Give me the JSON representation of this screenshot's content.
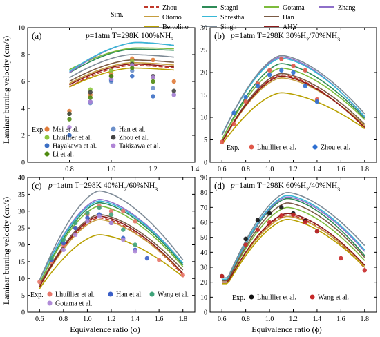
{
  "legend": {
    "sim_label": "Sim.",
    "models": [
      {
        "name": "Zhou",
        "color": "#c0392b",
        "dash": true
      },
      {
        "name": "Stagni",
        "color": "#2e8b57"
      },
      {
        "name": "Gotama",
        "color": "#7dbb3c"
      },
      {
        "name": "Zhang",
        "color": "#8e6fc9"
      },
      {
        "name": "Otomo",
        "color": "#c59d3f"
      },
      {
        "name": "Shrestha",
        "color": "#38b8d6"
      },
      {
        "name": "Han",
        "color": "#7a5a44"
      },
      {
        "name": "Bertolino",
        "color": "#b8a000"
      },
      {
        "name": "Singh",
        "color": "#7d8a96"
      },
      {
        "name": "AHY",
        "color": "#8b1a1a"
      }
    ]
  },
  "axes_text": {
    "ylabel_top": "Laminar burning velocity (cm/s)",
    "ylabel_bottom": "Laminar burning velocity (cm/s)",
    "xlabel_left": "Equivalence ratio (ϕ)",
    "xlabel_right": "Equivalence ratio (ϕ)"
  },
  "chart_data": [
    {
      "id": "a",
      "type": "line",
      "panel_label": "(a)",
      "title": "p=1atm T=298K 100%NH3",
      "exp_label": "Exp.",
      "xlim": [
        0.6,
        1.4
      ],
      "ylim": [
        0,
        10
      ],
      "xticks": [
        0.8,
        1.0,
        1.2,
        1.4
      ],
      "yticks": [
        0,
        2,
        4,
        6,
        8,
        10
      ],
      "series": [
        {
          "name": "Zhou",
          "peak": 7.2,
          "phi0": 1.1,
          "left": 3.6,
          "right": 5.8
        },
        {
          "name": "Stagni",
          "peak": 8.4,
          "phi0": 1.1,
          "left": 4.4,
          "right": 7.8
        },
        {
          "name": "Gotama",
          "peak": 8.5,
          "phi0": 1.12,
          "left": 5.2,
          "right": 7.9
        },
        {
          "name": "Zhang",
          "peak": 8.9,
          "phi0": 1.12,
          "left": 4.3,
          "right": 7.0
        },
        {
          "name": "Otomo",
          "peak": 7.4,
          "phi0": 1.1,
          "left": 3.9,
          "right": 6.1
        },
        {
          "name": "Shrestha",
          "peak": 8.9,
          "phi0": 1.12,
          "left": 4.5,
          "right": 7.0
        },
        {
          "name": "Han",
          "peak": 7.6,
          "phi0": 1.1,
          "left": 4.0,
          "right": 6.3
        },
        {
          "name": "Bertolino",
          "peak": 7.0,
          "phi0": 1.1,
          "left": 3.8,
          "right": 5.9
        },
        {
          "name": "Singh",
          "peak": 8.0,
          "phi0": 1.1,
          "left": 4.1,
          "right": 6.6
        },
        {
          "name": "AHY",
          "peak": 7.3,
          "phi0": 1.1,
          "left": 3.8,
          "right": 5.7
        }
      ],
      "experiments": [
        {
          "name": "Mei et al.",
          "color": "#e07b39",
          "points": [
            [
              0.8,
              3.8
            ],
            [
              0.9,
              5.0
            ],
            [
              1.0,
              6.6
            ],
            [
              1.1,
              7.7
            ],
            [
              1.2,
              7.6
            ],
            [
              1.3,
              6.0
            ]
          ]
        },
        {
          "name": "Han et al.",
          "color": "#6b8fc9",
          "points": [
            [
              0.8,
              2.0
            ],
            [
              0.9,
              4.4
            ],
            [
              1.0,
              6.0
            ],
            [
              1.1,
              6.8
            ],
            [
              1.2,
              5.5
            ],
            [
              1.3,
              5.0
            ]
          ]
        },
        {
          "name": "Lhuillier et al.",
          "color": "#8cc63f",
          "points": [
            [
              0.8,
              3.6
            ],
            [
              0.9,
              5.4
            ],
            [
              1.0,
              6.8
            ],
            [
              1.1,
              7.5
            ],
            [
              1.2,
              6.3
            ]
          ]
        },
        {
          "name": "Zhou et al.",
          "color": "#444444",
          "points": [
            [
              0.8,
              3.6
            ],
            [
              0.9,
              5.2
            ],
            [
              1.0,
              6.4
            ],
            [
              1.1,
              7.3
            ],
            [
              1.2,
              6.4
            ],
            [
              1.3,
              5.3
            ]
          ]
        },
        {
          "name": "Hayakawa et al.",
          "color": "#3c6fc4",
          "points": [
            [
              0.8,
              2.0
            ],
            [
              0.9,
              4.5
            ],
            [
              1.0,
              6.1
            ],
            [
              1.1,
              6.4
            ],
            [
              1.2,
              4.9
            ]
          ]
        },
        {
          "name": "Takizawa et al.",
          "color": "#b085d6",
          "points": [
            [
              0.8,
              2.6
            ],
            [
              0.9,
              4.5
            ],
            [
              1.0,
              6.2
            ],
            [
              1.1,
              7.2
            ],
            [
              1.2,
              6.3
            ],
            [
              1.3,
              5.0
            ]
          ]
        },
        {
          "name": "Li et al.",
          "color": "#4f8a10",
          "points": [
            [
              0.8,
              3.2
            ],
            [
              0.9,
              4.8
            ],
            [
              1.0,
              6.4
            ],
            [
              1.1,
              7.0
            ],
            [
              1.2,
              6.0
            ]
          ]
        }
      ]
    },
    {
      "id": "b",
      "type": "line",
      "panel_label": "(b)",
      "title": "p=1atm T=298K 30%H2/70%NH3",
      "exp_label": "Exp.",
      "xlim": [
        0.5,
        1.9
      ],
      "ylim": [
        0,
        30
      ],
      "xticks": [
        0.6,
        0.8,
        1.0,
        1.2,
        1.4,
        1.6,
        1.8
      ],
      "yticks": [
        0,
        5,
        10,
        15,
        20,
        25,
        30
      ],
      "series": [
        {
          "name": "Zhou",
          "peak": 19.5,
          "phi0": 1.1,
          "left": 4.2,
          "right": 7.6
        },
        {
          "name": "Stagni",
          "peak": 22.0,
          "phi0": 1.1,
          "left": 5.0,
          "right": 9.8
        },
        {
          "name": "Gotama",
          "peak": 21.0,
          "phi0": 1.1,
          "left": 5.0,
          "right": 9.5
        },
        {
          "name": "Zhang",
          "peak": 23.5,
          "phi0": 1.1,
          "left": 6.0,
          "right": 10.0
        },
        {
          "name": "Otomo",
          "peak": 18.8,
          "phi0": 1.1,
          "left": 4.5,
          "right": 8.2
        },
        {
          "name": "Shrestha",
          "peak": 23.2,
          "phi0": 1.1,
          "left": 6.2,
          "right": 10.2
        },
        {
          "name": "Han",
          "peak": 19.8,
          "phi0": 1.1,
          "left": 4.5,
          "right": 8.5
        },
        {
          "name": "Bertolino",
          "peak": 15.5,
          "phi0": 1.1,
          "left": 4.0,
          "right": 7.5
        },
        {
          "name": "Singh",
          "peak": 23.8,
          "phi0": 1.1,
          "left": 6.0,
          "right": 10.8
        },
        {
          "name": "AHY",
          "peak": 19.2,
          "phi0": 1.1,
          "left": 4.5,
          "right": 7.8
        }
      ],
      "experiments": [
        {
          "name": "Lhuillier et al.",
          "color": "#e0584a",
          "points": [
            [
              0.6,
              4.5
            ],
            [
              0.7,
              8.5
            ],
            [
              0.8,
              13.5
            ],
            [
              0.9,
              17.5
            ],
            [
              1.0,
              20.5
            ],
            [
              1.1,
              23.0
            ],
            [
              1.2,
              21.5
            ],
            [
              1.3,
              20.5
            ],
            [
              1.4,
              14.0
            ]
          ]
        },
        {
          "name": "Zhou et al.",
          "color": "#2e6fd1",
          "points": [
            [
              0.7,
              11.0
            ],
            [
              0.8,
              14.5
            ],
            [
              0.9,
              17.0
            ],
            [
              1.0,
              19.5
            ],
            [
              1.1,
              20.5
            ],
            [
              1.2,
              20.0
            ],
            [
              1.3,
              17.0
            ],
            [
              1.4,
              13.5
            ]
          ]
        }
      ]
    },
    {
      "id": "c",
      "type": "line",
      "panel_label": "(c)",
      "title": "p=1atm T=298K 40%H2/60%NH3",
      "exp_label": "Exp.",
      "xlim": [
        0.5,
        1.9
      ],
      "ylim": [
        0,
        40
      ],
      "xticks": [
        0.6,
        0.8,
        1.0,
        1.2,
        1.4,
        1.6,
        1.8
      ],
      "yticks": [
        0,
        5,
        10,
        15,
        20,
        25,
        30,
        35,
        40
      ],
      "series": [
        {
          "name": "Zhou",
          "peak": 28.0,
          "phi0": 1.1,
          "left": 7.5,
          "right": 11.0
        },
        {
          "name": "Stagni",
          "peak": 32.5,
          "phi0": 1.1,
          "left": 8.5,
          "right": 14.0
        },
        {
          "name": "Gotama",
          "peak": 31.5,
          "phi0": 1.1,
          "left": 8.5,
          "right": 13.5
        },
        {
          "name": "Zhang",
          "peak": 33.5,
          "phi0": 1.1,
          "left": 9.5,
          "right": 14.5
        },
        {
          "name": "Otomo",
          "peak": 27.5,
          "phi0": 1.1,
          "left": 7.5,
          "right": 11.5
        },
        {
          "name": "Shrestha",
          "peak": 33.0,
          "phi0": 1.1,
          "left": 9.5,
          "right": 14.5
        },
        {
          "name": "Han",
          "peak": 29.0,
          "phi0": 1.1,
          "left": 8.0,
          "right": 12.5
        },
        {
          "name": "Bertolino",
          "peak": 23.0,
          "phi0": 1.1,
          "left": 7.0,
          "right": 10.5
        },
        {
          "name": "Singh",
          "peak": 36.0,
          "phi0": 1.1,
          "left": 9.5,
          "right": 15.5
        },
        {
          "name": "AHY",
          "peak": 28.5,
          "phi0": 1.1,
          "left": 7.5,
          "right": 11.5
        }
      ],
      "experiments": [
        {
          "name": "Lhuillier et al.",
          "color": "#e8766a",
          "points": [
            [
              0.6,
              9.0
            ],
            [
              0.7,
              15.0
            ],
            [
              0.8,
              20.0
            ],
            [
              0.9,
              25.0
            ],
            [
              1.0,
              29.0
            ],
            [
              1.1,
              31.5
            ],
            [
              1.2,
              30.0
            ],
            [
              1.3,
              30.0
            ],
            [
              1.4,
              27.0
            ],
            [
              1.6,
              15.5
            ],
            [
              1.8,
              11.0
            ]
          ]
        },
        {
          "name": "Han et al.",
          "color": "#3a5fc8",
          "points": [
            [
              0.7,
              15.5
            ],
            [
              0.8,
              20.5
            ],
            [
              0.9,
              25.0
            ],
            [
              1.0,
              28.0
            ],
            [
              1.1,
              29.0
            ],
            [
              1.2,
              26.5
            ],
            [
              1.3,
              22.0
            ],
            [
              1.4,
              18.5
            ],
            [
              1.5,
              16.0
            ]
          ]
        },
        {
          "name": "Wang et al.",
          "color": "#3fa37a",
          "points": [
            [
              0.7,
              16.0
            ],
            [
              0.8,
              21.5
            ],
            [
              0.9,
              26.5
            ],
            [
              1.0,
              29.5
            ],
            [
              1.1,
              31.0
            ],
            [
              1.2,
              29.0
            ],
            [
              1.3,
              24.5
            ],
            [
              1.4,
              20.0
            ]
          ]
        },
        {
          "name": "Gotama et al.",
          "color": "#b08bd8",
          "points": [
            [
              0.8,
              18.5
            ],
            [
              0.9,
              23.0
            ],
            [
              1.0,
              27.0
            ],
            [
              1.1,
              28.5
            ],
            [
              1.2,
              26.5
            ],
            [
              1.3,
              21.5
            ],
            [
              1.4,
              18.0
            ]
          ]
        }
      ]
    },
    {
      "id": "d",
      "type": "line",
      "panel_label": "(d)",
      "title": "p=1atm T=298K 60%H2/40%NH3",
      "exp_label": "Exp.",
      "xlim": [
        0.5,
        1.9
      ],
      "ylim": [
        0,
        90
      ],
      "xticks": [
        0.6,
        0.8,
        1.0,
        1.2,
        1.4,
        1.6,
        1.8
      ],
      "yticks": [
        0,
        10,
        20,
        30,
        40,
        50,
        60,
        70,
        80,
        90
      ],
      "series": [
        {
          "name": "Zhou",
          "peak": 65.0,
          "phi0": 1.15,
          "left": 20.0,
          "right": 25.0
        },
        {
          "name": "Stagni",
          "peak": 76.0,
          "phi0": 1.15,
          "left": 22.0,
          "right": 33.0
        },
        {
          "name": "Gotama",
          "peak": 70.0,
          "phi0": 1.15,
          "left": 21.0,
          "right": 30.0
        },
        {
          "name": "Zhang",
          "peak": 77.0,
          "phi0": 1.15,
          "left": 22.0,
          "right": 36.0
        },
        {
          "name": "Otomo",
          "peak": 64.0,
          "phi0": 1.15,
          "left": 20.0,
          "right": 27.0
        },
        {
          "name": "Shrestha",
          "peak": 78.0,
          "phi0": 1.15,
          "left": 22.0,
          "right": 37.0
        },
        {
          "name": "Han",
          "peak": 73.0,
          "phi0": 1.15,
          "left": 21.0,
          "right": 32.0
        },
        {
          "name": "Bertolino",
          "peak": 62.0,
          "phi0": 1.15,
          "left": 19.0,
          "right": 26.0
        },
        {
          "name": "Singh",
          "peak": 80.0,
          "phi0": 1.15,
          "left": 23.0,
          "right": 40.0
        },
        {
          "name": "AHY",
          "peak": 66.0,
          "phi0": 1.15,
          "left": 20.0,
          "right": 27.0
        }
      ],
      "experiments": [
        {
          "name": "Lhuillier et al.",
          "color": "#111111",
          "points": [
            [
              0.6,
              24.0
            ],
            [
              0.8,
              49.0
            ],
            [
              0.9,
              61.5
            ],
            [
              1.0,
              66.0
            ],
            [
              1.1,
              70.0
            ],
            [
              1.2,
              66.0
            ],
            [
              1.3,
              61.0
            ],
            [
              1.4,
              54.0
            ]
          ]
        },
        {
          "name": "Wang et al.",
          "color": "#c62828",
          "points": [
            [
              0.6,
              24.0
            ],
            [
              0.8,
              45.0
            ],
            [
              0.9,
              55.0
            ],
            [
              1.0,
              60.0
            ],
            [
              1.1,
              64.5
            ],
            [
              1.2,
              65.0
            ],
            [
              1.3,
              60.0
            ],
            [
              1.4,
              54.0
            ],
            [
              1.6,
              36.0
            ],
            [
              1.8,
              28.0
            ]
          ]
        }
      ]
    }
  ]
}
